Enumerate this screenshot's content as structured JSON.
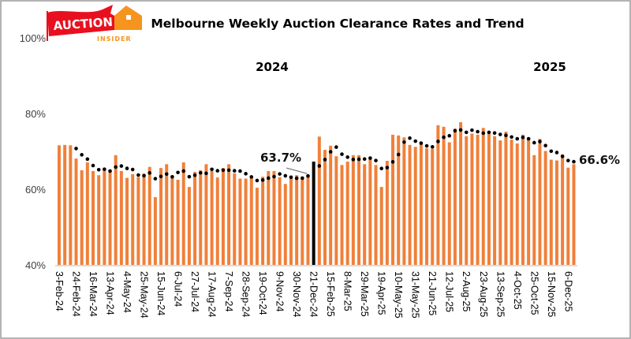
{
  "logo": {
    "line1": "AUCTION",
    "line2": "INSIDER",
    "red": "#E8101E",
    "orange": "#F7941D"
  },
  "chart_data": {
    "type": "bar",
    "title": "Melbourne Weekly Auction Clearance Rates and Trend",
    "xlabel": "",
    "ylabel": "",
    "ylim": [
      40,
      100
    ],
    "y_ticks": [
      "40%",
      "60%",
      "80%",
      "100%"
    ],
    "grid": false,
    "year_labels": [
      "2024",
      "2025"
    ],
    "tick_every": 3,
    "x_tick_labels": [
      "3-Feb-24",
      "24-Feb-24",
      "16-Mar-24",
      "13-Apr-24",
      "4-May-24",
      "25-May-24",
      "15-Jun-24",
      "6-Jul-24",
      "27-Jul-24",
      "17-Aug-24",
      "7-Sep-24",
      "28-Sep-24",
      "19-Oct-24",
      "9-Nov-24",
      "30-Nov-24",
      "21-Dec-24",
      "15-Feb-25",
      "8-Mar-25",
      "29-Mar-25",
      "19-Apr-25",
      "10-May-25",
      "31-May-25",
      "21-Jun-25",
      "12-Jul-25",
      "2-Aug-25",
      "23-Aug-25",
      "13-Sep-25",
      "4-Oct-25",
      "25-Oct-25",
      "15-Nov-25",
      "6-Dec-25"
    ],
    "values": [
      71.6,
      71.7,
      71.6,
      68.1,
      65.0,
      67.1,
      64.8,
      63.7,
      65.5,
      65.2,
      69.0,
      64.8,
      63.0,
      64.0,
      63.2,
      64.1,
      65.9,
      57.9,
      65.6,
      66.6,
      63.0,
      62.5,
      67.1,
      60.6,
      64.6,
      65.0,
      66.6,
      64.8,
      63.1,
      65.6,
      66.6,
      64.2,
      62.8,
      62.8,
      63.2,
      60.4,
      63.3,
      64.8,
      64.8,
      63.2,
      61.4,
      63.3,
      63.7,
      63.3,
      63.7,
      null,
      73.9,
      70.4,
      71.5,
      68.7,
      66.4,
      67.3,
      69.0,
      69.0,
      66.6,
      68.3,
      66.4,
      60.6,
      67.5,
      74.4,
      74.2,
      73.7,
      71.7,
      71.2,
      72.1,
      70.8,
      70.7,
      76.9,
      76.5,
      72.4,
      76.0,
      77.7,
      74.0,
      74.7,
      74.4,
      76.2,
      74.8,
      74.0,
      72.9,
      75.2,
      73.1,
      72.1,
      74.4,
      73.7,
      69.0,
      73.3,
      70.1,
      67.8,
      67.6,
      69.2,
      65.7,
      66.6
    ],
    "year_separator": {
      "position_index": 45,
      "color": "#000000"
    },
    "trend": {
      "style": "dotted",
      "type": "moving_average",
      "window": 4,
      "color": "#000000"
    },
    "bar_color": "#F0803A",
    "annotations": [
      {
        "text": "63.7%",
        "index": 44
      },
      {
        "text": "66.6%",
        "index": 91
      }
    ]
  }
}
